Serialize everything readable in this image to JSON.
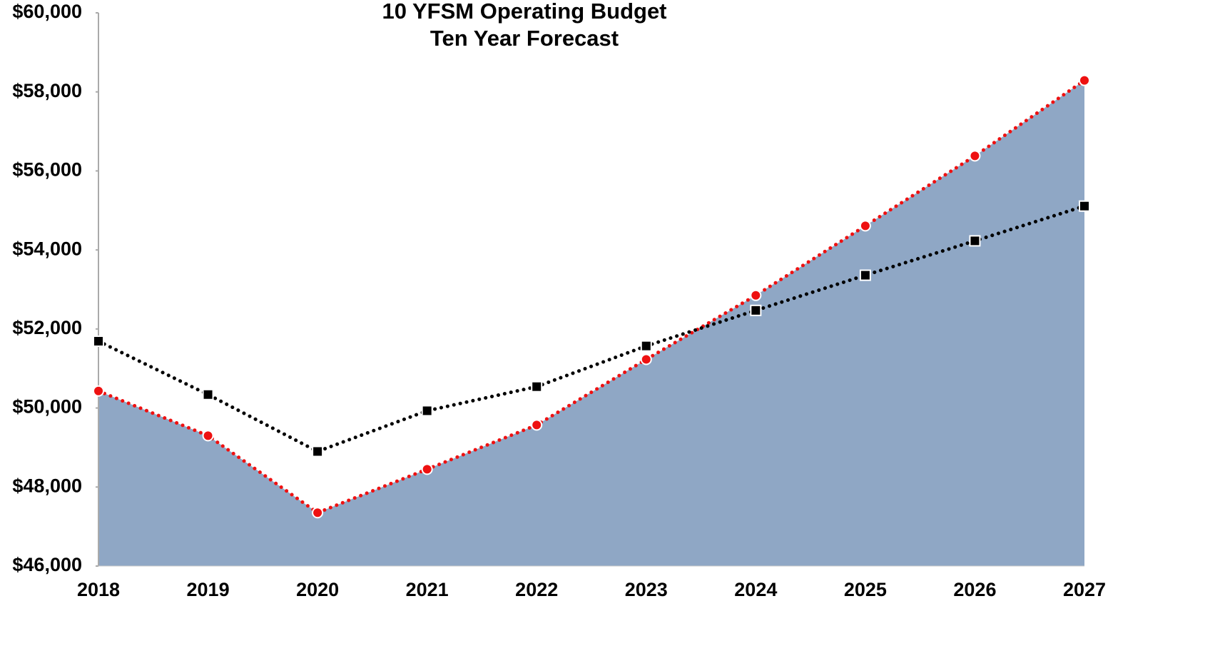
{
  "chart_data": {
    "type": "line",
    "title": "10 YFSM Operating Budget",
    "subtitle": "Ten Year Forecast",
    "categories": [
      "2018",
      "2019",
      "2020",
      "2021",
      "2022",
      "2023",
      "2024",
      "2025",
      "2026",
      "2027"
    ],
    "series": [
      {
        "color": "#ee1111",
        "marker": "circle",
        "area": true,
        "area_color": "#8fa7c5",
        "values": [
          50430,
          49300,
          47350,
          48450,
          49570,
          51230,
          52850,
          54610,
          56380,
          58290
        ]
      },
      {
        "color": "#000000",
        "marker": "square",
        "area": false,
        "values": [
          51690,
          50340,
          48900,
          49930,
          50540,
          51570,
          52470,
          53360,
          54230,
          55110
        ]
      }
    ],
    "ylim": [
      46000,
      60000
    ],
    "yticks": [
      {
        "value": 46000,
        "label": "$46,000"
      },
      {
        "value": 48000,
        "label": "$48,000"
      },
      {
        "value": 50000,
        "label": "$50,000"
      },
      {
        "value": 52000,
        "label": "$52,000"
      },
      {
        "value": 54000,
        "label": "$54,000"
      },
      {
        "value": 56000,
        "label": "$56,000"
      },
      {
        "value": 58000,
        "label": "$58,000"
      },
      {
        "value": 60000,
        "label": "$60,000"
      }
    ],
    "grid": false
  }
}
